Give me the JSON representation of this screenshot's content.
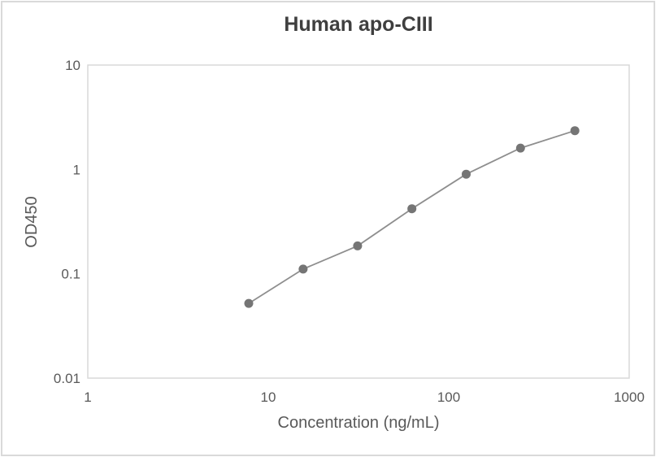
{
  "chart_data": {
    "type": "line",
    "title": "Human apo-CIII",
    "xlabel": "Concentration (ng/mL)",
    "ylabel": "OD450",
    "x_scale": "log",
    "y_scale": "log",
    "xlim": [
      1,
      1000
    ],
    "ylim": [
      0.01,
      10
    ],
    "x_ticks": [
      "1",
      "10",
      "100",
      "1000"
    ],
    "y_ticks": [
      "10",
      "1",
      "0.1",
      "0.01"
    ],
    "grid": false,
    "legend": "none",
    "series": [
      {
        "x": [
          7.8,
          15.6,
          31.25,
          62.5,
          125,
          250,
          500
        ],
        "y": [
          0.052,
          0.111,
          0.185,
          0.42,
          0.9,
          1.6,
          2.35
        ],
        "marker": "circle",
        "marker_size": 5.5,
        "line_color": "#8e8e8e",
        "marker_color": "#757575"
      }
    ]
  },
  "colors": {
    "title_text": "#3f3f3f",
    "axis_text": "#595959",
    "plot_border": "#d9d9d9",
    "frame_border": "#d9d9d9",
    "background": "#ffffff"
  }
}
